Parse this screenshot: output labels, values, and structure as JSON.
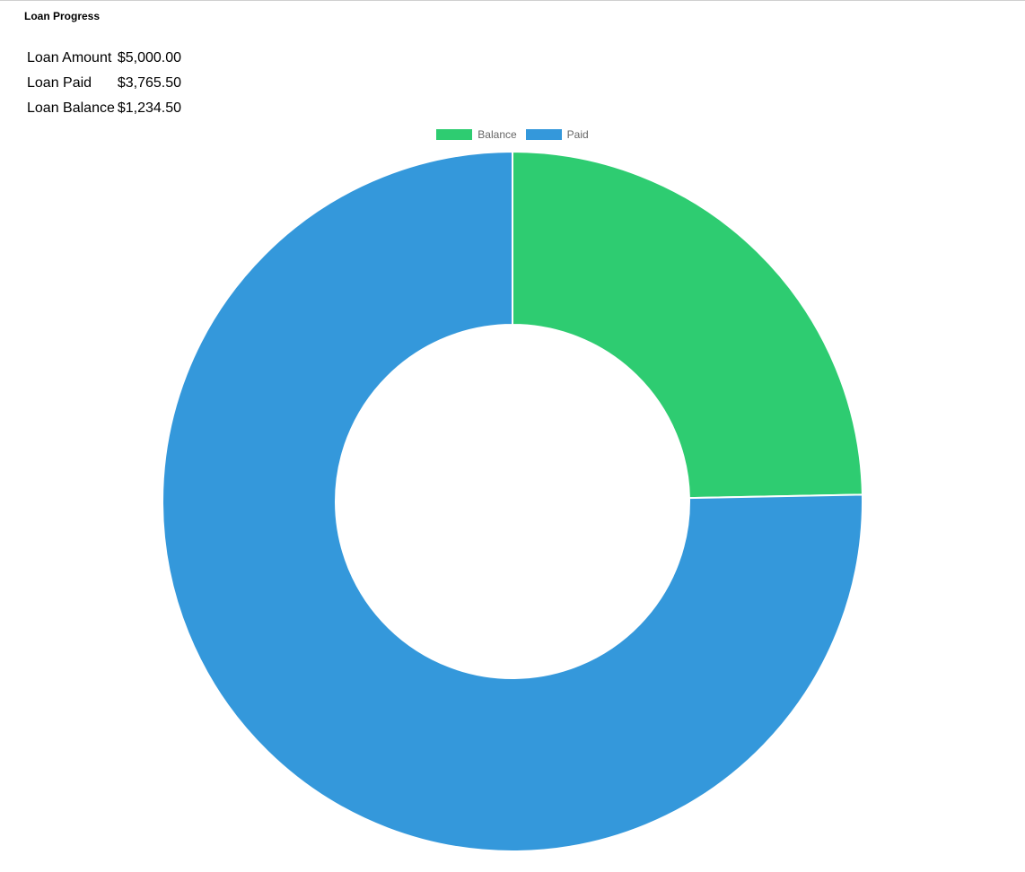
{
  "page": {
    "title": "Loan Progress"
  },
  "summary": [
    {
      "label": "Loan Amount",
      "value": "$5,000.00"
    },
    {
      "label": "Loan Paid",
      "value": "$3,765.50"
    },
    {
      "label": "Loan Balance",
      "value": "$1,234.50"
    }
  ],
  "chart_data": {
    "type": "pie",
    "variant": "doughnut",
    "categories": [
      "Balance",
      "Paid"
    ],
    "values": [
      1234.5,
      3765.5
    ],
    "colors": [
      "#2ecc71",
      "#3498db"
    ],
    "legend": "top",
    "title": ""
  }
}
